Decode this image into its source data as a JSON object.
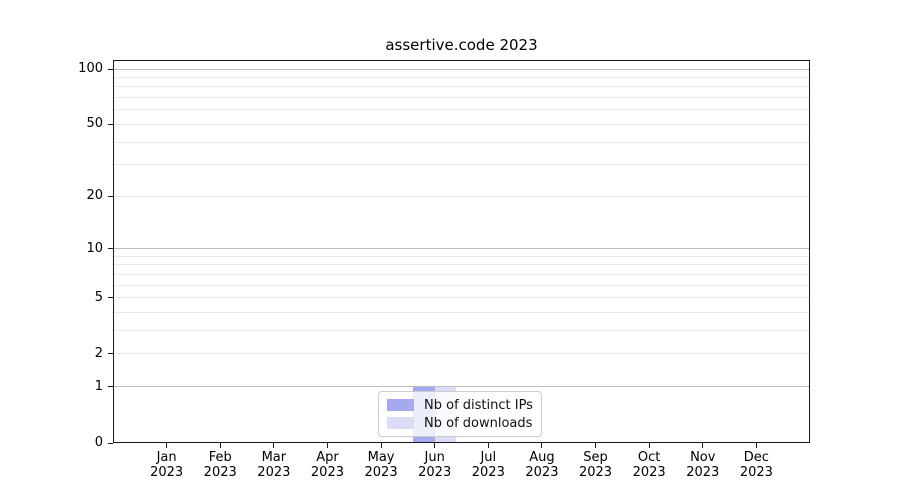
{
  "title": "assertive.code 2023",
  "chart_data": {
    "type": "bar",
    "title": "assertive.code 2023",
    "categories": [
      "Jan 2023",
      "Feb 2023",
      "Mar 2023",
      "Apr 2023",
      "May 2023",
      "Jun 2023",
      "Jul 2023",
      "Aug 2023",
      "Sep 2023",
      "Oct 2023",
      "Nov 2023",
      "Dec 2023"
    ],
    "series": [
      {
        "name": "Nb of distinct IPs",
        "color": "#a7a9f0",
        "values": [
          0,
          0,
          0,
          0,
          0,
          1,
          0,
          0,
          0,
          0,
          0,
          0
        ]
      },
      {
        "name": "Nb of downloads",
        "color": "#dbddf6",
        "values": [
          0,
          0,
          0,
          0,
          0,
          1,
          0,
          0,
          0,
          0,
          0,
          0
        ]
      }
    ],
    "xlabel": "",
    "ylabel": "",
    "yscale": "log1p",
    "ylim": [
      0,
      112
    ],
    "yticks": [
      0,
      1,
      2,
      5,
      10,
      20,
      50,
      100
    ],
    "major_gridlines": [
      1,
      10,
      100
    ],
    "minor_gridlines": [
      2,
      3,
      4,
      5,
      6,
      7,
      8,
      9,
      20,
      30,
      40,
      50,
      60,
      70,
      80,
      90
    ],
    "grid": true,
    "legend_position": "lower center",
    "bar_group_width_frac": 0.8
  },
  "colors": {
    "background": "#ffffff",
    "spine": "#1a1a1a",
    "major_grid": "#bdbdbd",
    "minor_grid": "#eaeaea",
    "text": "#000000",
    "legend_border": "#cccccc",
    "legend_bg": "rgba(255,255,255,0.8)"
  }
}
